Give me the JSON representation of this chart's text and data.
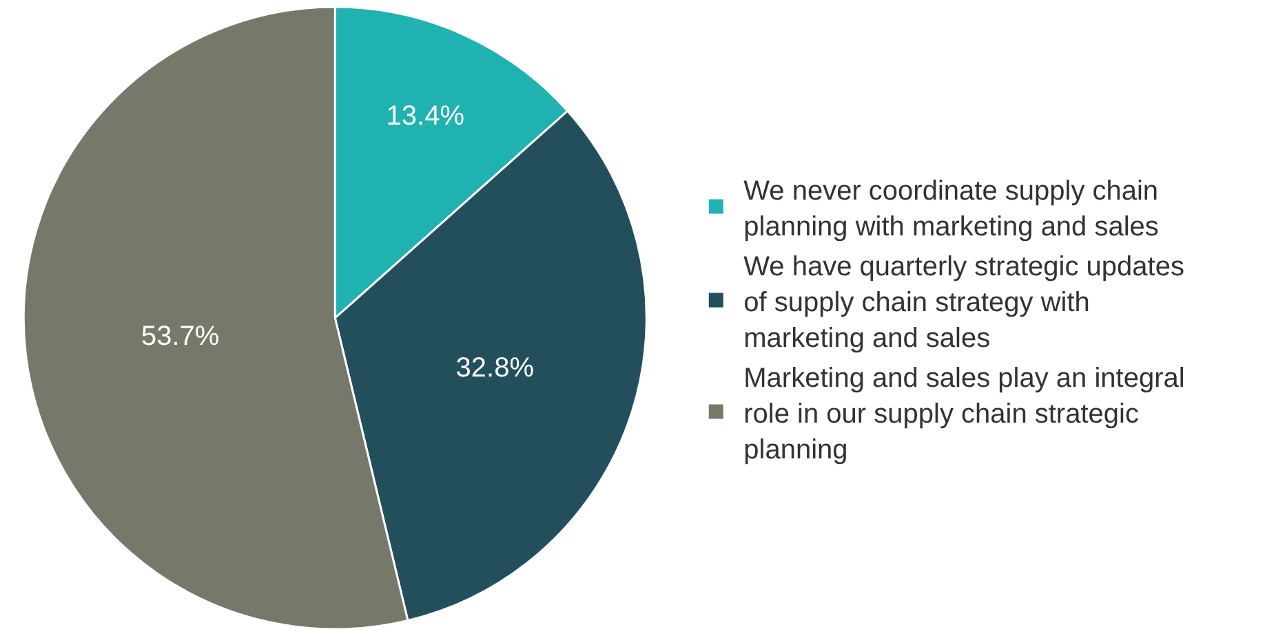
{
  "chart_data": {
    "type": "pie",
    "categories": [
      "We never coordinate supply chain planning with marketing and sales",
      "We have quarterly strategic updates of supply chain strategy with marketing and sales",
      "Marketing and sales play an integral role in our supply chain strategic planning"
    ],
    "values": [
      13.4,
      32.8,
      53.7
    ],
    "colors": [
      "#20b2b0",
      "#234f5c",
      "#76786a"
    ],
    "value_labels": [
      "13.4%",
      "32.8%",
      "53.7%"
    ],
    "legend": "right"
  }
}
